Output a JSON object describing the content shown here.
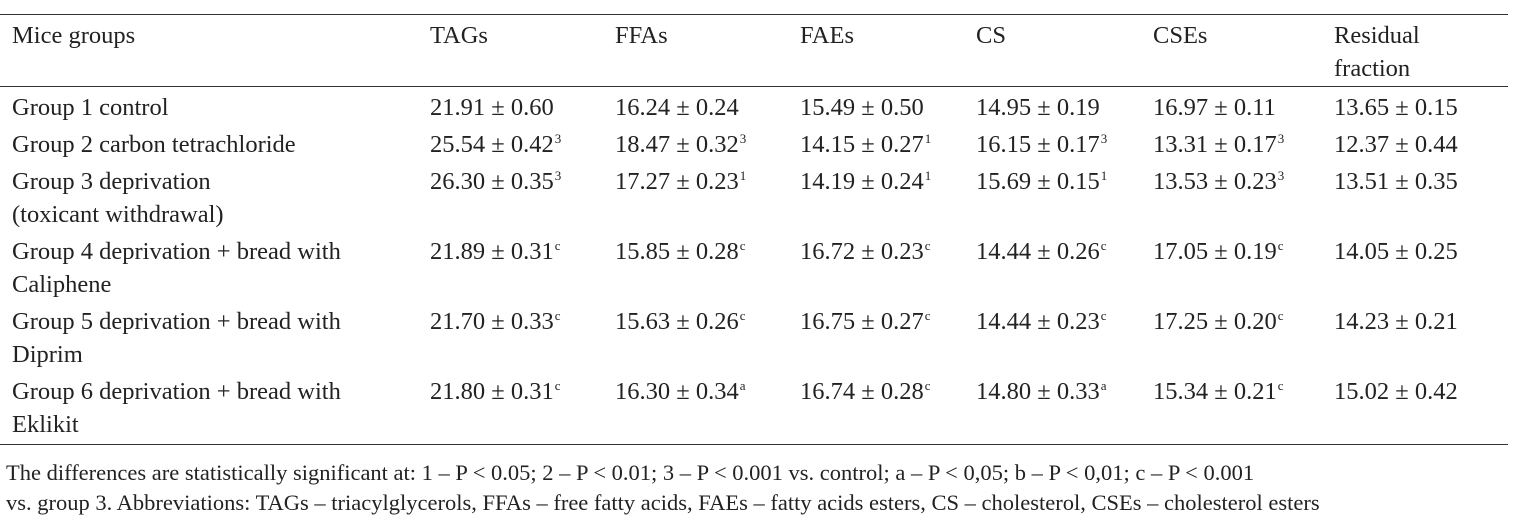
{
  "headers": {
    "group": "Mice groups",
    "tags": "TAGs",
    "ffas": "FFAs",
    "faes": "FAEs",
    "cs": "CS",
    "cses": "CSEs",
    "residual_line1": "Residual",
    "residual_line2": "fraction"
  },
  "rows": [
    {
      "group_line1": "Group 1 control",
      "group_line2": "",
      "tags": "21.91 ± 0.60",
      "tags_sup": "",
      "ffas": "16.24 ± 0.24",
      "ffas_sup": "",
      "faes": "15.49 ± 0.50",
      "faes_sup": "",
      "cs": "14.95 ± 0.19",
      "cs_sup": "",
      "cses": "16.97 ± 0.11",
      "cses_sup": "",
      "residual": "13.65 ± 0.15"
    },
    {
      "group_line1": "Group 2 carbon tetrachloride",
      "group_line2": "",
      "tags": "25.54 ± 0.42",
      "tags_sup": "3",
      "ffas": "18.47 ± 0.32",
      "ffas_sup": "3",
      "faes": "14.15 ± 0.27",
      "faes_sup": "1",
      "cs": "16.15 ± 0.17",
      "cs_sup": "3",
      "cses": "13.31 ± 0.17",
      "cses_sup": "3",
      "residual": "12.37 ± 0.44"
    },
    {
      "group_line1": "Group 3 deprivation",
      "group_line2": "(toxicant withdrawal)",
      "tags": "26.30 ± 0.35",
      "tags_sup": "3",
      "ffas": "17.27 ± 0.23",
      "ffas_sup": "1",
      "faes": "14.19 ± 0.24",
      "faes_sup": "1",
      "cs": "15.69 ± 0.15",
      "cs_sup": "1",
      "cses": "13.53 ± 0.23",
      "cses_sup": "3",
      "residual": "13.51 ± 0.35"
    },
    {
      "group_line1": "Group 4 deprivation + bread with",
      "group_line2": "Caliphene",
      "tags": "21.89 ± 0.31",
      "tags_sup": "c",
      "ffas": "15.85 ± 0.28",
      "ffas_sup": "c",
      "faes": "16.72 ± 0.23",
      "faes_sup": "c",
      "cs": "14.44 ± 0.26",
      "cs_sup": "c",
      "cses": "17.05 ± 0.19",
      "cses_sup": "c",
      "residual": "14.05 ± 0.25"
    },
    {
      "group_line1": "Group 5 deprivation + bread with",
      "group_line2": "Diprim",
      "tags": "21.70 ± 0.33",
      "tags_sup": "c",
      "ffas": "15.63 ± 0.26",
      "ffas_sup": "c",
      "faes": "16.75 ± 0.27",
      "faes_sup": "c",
      "cs": "14.44 ± 0.23",
      "cs_sup": "c",
      "cses": "17.25 ± 0.20",
      "cses_sup": "c",
      "residual": "14.23 ± 0.21"
    },
    {
      "group_line1": "Group 6 deprivation + bread with",
      "group_line2": "Eklikit",
      "tags": "21.80 ± 0.31",
      "tags_sup": "c",
      "ffas": "16.30 ± 0.34",
      "ffas_sup": "a",
      "faes": "16.74 ± 0.28",
      "faes_sup": "c",
      "cs": "14.80 ± 0.33",
      "cs_sup": "a",
      "cses": "15.34 ± 0.21",
      "cses_sup": "c",
      "residual": "15.02 ± 0.42"
    }
  ],
  "footnote": {
    "line1": "The differences are statistically significant at:  1 – P < 0.05; 2 – P < 0.01; 3 – P < 0.001 vs. control; a – P < 0,05; b – P < 0,01; c – P < 0.001",
    "line2": "vs. group 3. Abbreviations: TAGs – triacylglycerols, FFAs – free fatty acids, FAEs – fatty acids esters, CS – cholesterol, CSEs – cholesterol esters"
  }
}
